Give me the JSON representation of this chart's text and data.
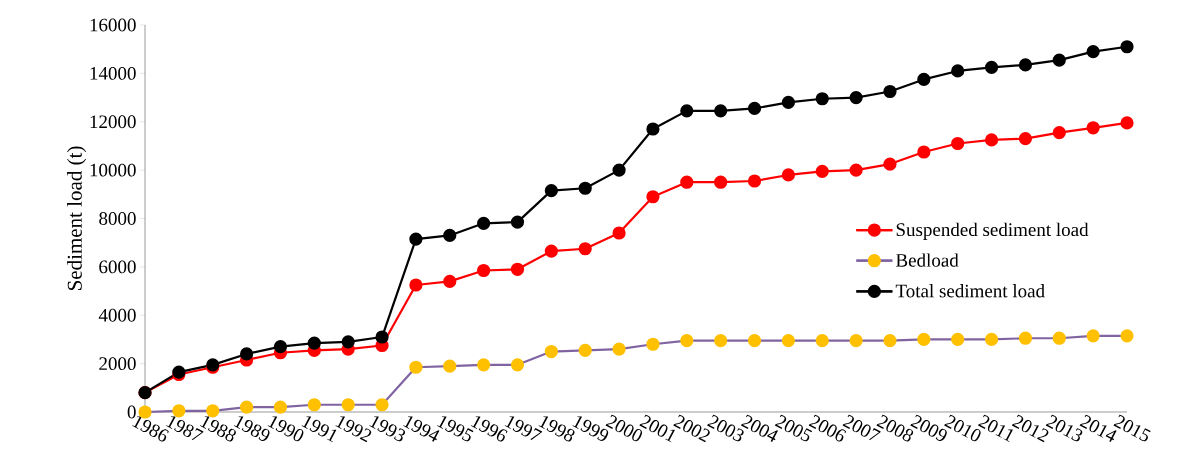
{
  "chart_data": {
    "type": "line",
    "ylabel": "Sediment load (t)",
    "categories": [
      "1986",
      "1987",
      "1988",
      "1989",
      "1990",
      "1991",
      "1992",
      "1993",
      "1994",
      "1995",
      "1996",
      "1997",
      "1998",
      "1999",
      "2000",
      "2001",
      "2002",
      "2003",
      "2004",
      "2005",
      "2006",
      "2007",
      "2008",
      "2009",
      "2010",
      "2011",
      "2012",
      "2013",
      "2014",
      "2015"
    ],
    "series": [
      {
        "name": "Suspended sediment load",
        "color": "#ff0000",
        "values": [
          800,
          1550,
          1850,
          2150,
          2450,
          2550,
          2600,
          2750,
          5250,
          5400,
          5850,
          5900,
          6650,
          6750,
          7400,
          8900,
          9500,
          9500,
          9550,
          9800,
          9950,
          10000,
          10250,
          10750,
          11100,
          11250,
          11300,
          11550,
          11750,
          11950
        ]
      },
      {
        "name": "Bedload",
        "color": "#ffc000",
        "values": [
          0,
          50,
          50,
          200,
          200,
          300,
          300,
          300,
          1850,
          1900,
          1950,
          1950,
          2500,
          2550,
          2600,
          2800,
          2950,
          2950,
          2950,
          2950,
          2950,
          2950,
          2950,
          3000,
          3000,
          3000,
          3050,
          3050,
          3150,
          3150
        ]
      },
      {
        "name": "Total sediment load",
        "color": "#000000",
        "values": [
          800,
          1650,
          1950,
          2400,
          2700,
          2850,
          2900,
          3100,
          7150,
          7300,
          7800,
          7850,
          9150,
          9250,
          10000,
          11700,
          12450,
          12450,
          12550,
          12800,
          12950,
          13000,
          13250,
          13750,
          14100,
          14250,
          14350,
          14550,
          14900,
          15100
        ]
      }
    ],
    "ylim": [
      0,
      16000
    ],
    "yticks": [
      0,
      2000,
      4000,
      6000,
      8000,
      10000,
      12000,
      14000,
      16000
    ],
    "legend": "right",
    "marker": "circle",
    "line_style": "solid"
  }
}
